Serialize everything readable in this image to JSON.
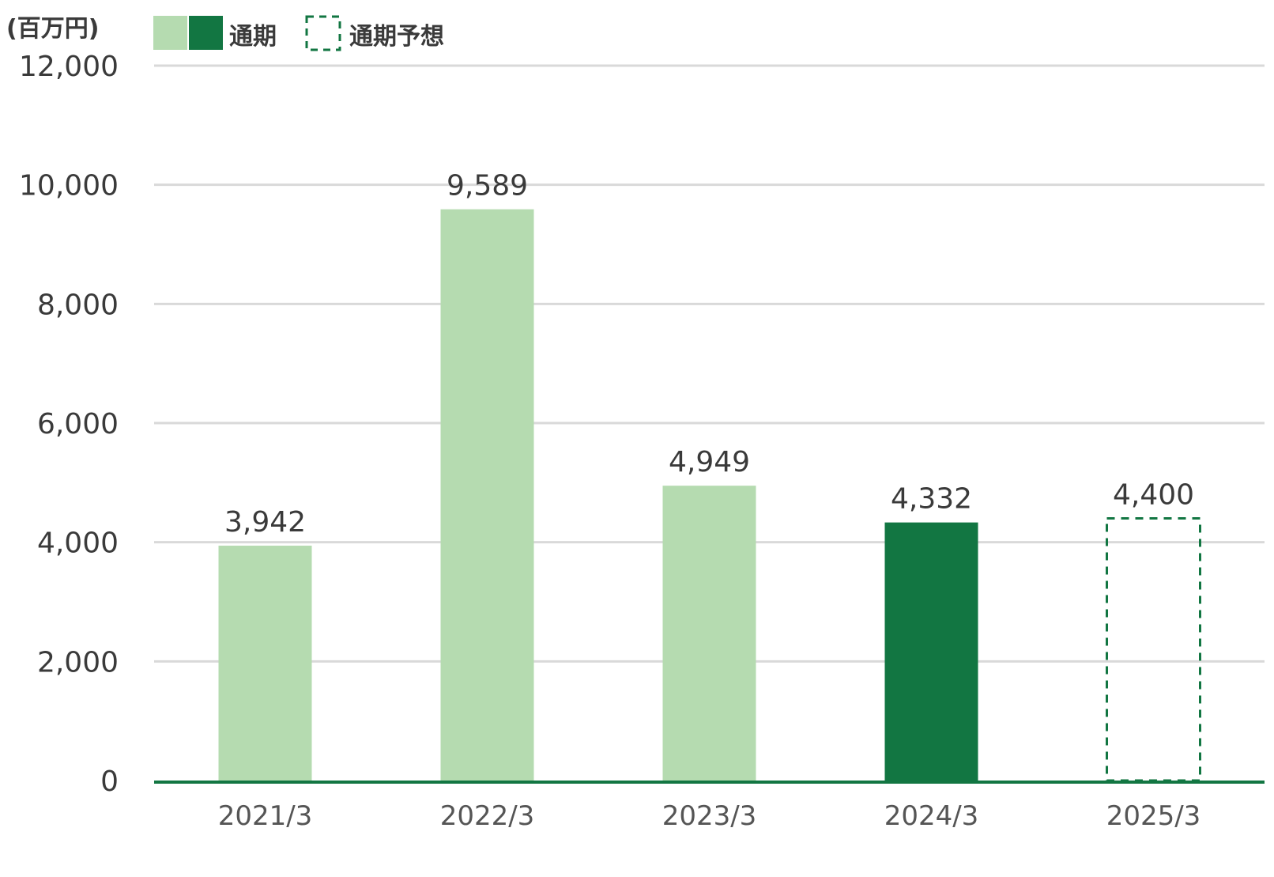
{
  "chart_data": {
    "type": "bar",
    "unit_label": "(百万円)",
    "categories": [
      "2021/3",
      "2022/3",
      "2023/3",
      "2024/3",
      "2025/3"
    ],
    "values": [
      3942,
      9589,
      4949,
      4332,
      4400
    ],
    "value_labels": [
      "3,942",
      "9,589",
      "4,949",
      "4,332",
      "4,400"
    ],
    "bar_styles": [
      "past",
      "past",
      "past",
      "current",
      "forecast"
    ],
    "ylim": [
      0,
      12000
    ],
    "yticks": [
      0,
      2000,
      4000,
      6000,
      8000,
      10000,
      12000
    ],
    "ytick_labels": [
      "0",
      "2,000",
      "4,000",
      "6,000",
      "8,000",
      "10,000",
      "12,000"
    ],
    "grid": true,
    "legend": [
      {
        "label": "通期",
        "style": "solid-pair"
      },
      {
        "label": "通期予想",
        "style": "dashed"
      }
    ],
    "colors": {
      "past": "#b5dbb0",
      "current": "#127642",
      "forecast_border": "#127642",
      "grid": "#d9d9d9",
      "baseline": "#127642"
    }
  }
}
